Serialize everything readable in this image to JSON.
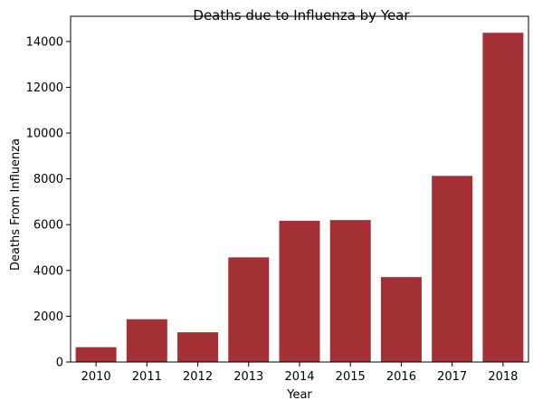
{
  "chart_data": {
    "type": "bar",
    "title": "Deaths due to Influenza by Year",
    "xlabel": "Year",
    "ylabel": "Deaths From Influenza",
    "categories": [
      "2010",
      "2011",
      "2012",
      "2013",
      "2014",
      "2015",
      "2016",
      "2017",
      "2018"
    ],
    "values": [
      650,
      1870,
      1300,
      4570,
      6170,
      6200,
      3710,
      8130,
      14380
    ],
    "ylim": [
      0,
      15100
    ],
    "yticks": [
      0,
      2000,
      4000,
      6000,
      8000,
      10000,
      12000,
      14000
    ],
    "grid": false,
    "legend": "none",
    "bar_color": "#a33034"
  }
}
